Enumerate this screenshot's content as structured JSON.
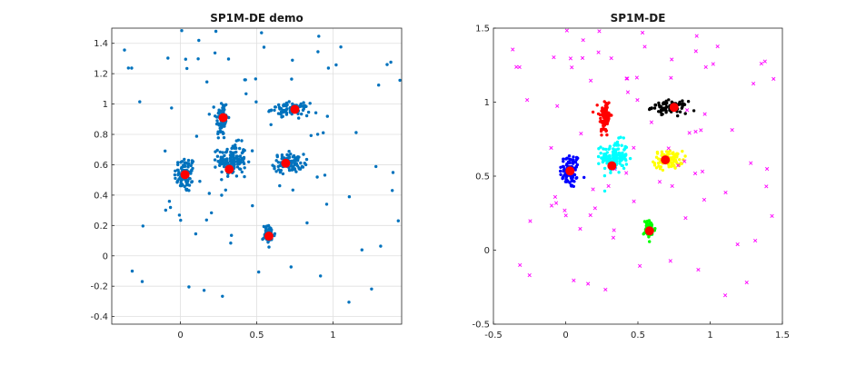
{
  "chart_data": [
    {
      "type": "scatter",
      "title": "SP1M-DE demo",
      "xlim": [
        -0.45,
        1.45
      ],
      "ylim": [
        -0.45,
        1.5
      ],
      "xticks": [
        0,
        0.5,
        1
      ],
      "xtick_labels": [
        "0",
        "0.5",
        "1"
      ],
      "yticks": [
        -0.4,
        -0.2,
        0,
        0.2,
        0.4,
        0.6,
        0.8,
        1,
        1.2,
        1.4
      ],
      "ytick_labels": [
        "-0.4",
        "-0.2",
        "0",
        "0.2",
        "0.4",
        "0.6",
        "0.8",
        "1",
        "1.2",
        "1.4"
      ],
      "grid": true,
      "point_color": "#0072bd",
      "center_color": "#ff0000",
      "clusters": [
        {
          "center": [
            0.03,
            0.535
          ],
          "spread": [
            0.035,
            0.06
          ],
          "count": 85
        },
        {
          "center": [
            0.27,
            0.9
          ],
          "spread": [
            0.02,
            0.07
          ],
          "count": 75
        },
        {
          "center": [
            0.34,
            0.63
          ],
          "spread": [
            0.045,
            0.055
          ],
          "count": 130
        },
        {
          "center": [
            0.71,
            0.61
          ],
          "spread": [
            0.05,
            0.03
          ],
          "count": 90
        },
        {
          "center": [
            0.72,
            0.965
          ],
          "spread": [
            0.06,
            0.02
          ],
          "count": 85
        },
        {
          "center": [
            0.58,
            0.14
          ],
          "spread": [
            0.02,
            0.03
          ],
          "count": 60
        }
      ],
      "outlier_count": 85,
      "centers": [
        {
          "x": 0.03,
          "y": 0.535
        },
        {
          "x": 0.28,
          "y": 0.91
        },
        {
          "x": 0.32,
          "y": 0.57
        },
        {
          "x": 0.69,
          "y": 0.61
        },
        {
          "x": 0.75,
          "y": 0.965
        },
        {
          "x": 0.58,
          "y": 0.13
        }
      ]
    },
    {
      "type": "scatter",
      "title": "SP1M-DE",
      "xlim": [
        -0.5,
        1.5
      ],
      "ylim": [
        -0.5,
        1.5
      ],
      "xticks": [
        -0.5,
        0,
        0.5,
        1,
        1.5
      ],
      "xtick_labels": [
        "-0.5",
        "0",
        "0.5",
        "1",
        "1.5"
      ],
      "yticks": [
        -0.5,
        0,
        0.5,
        1,
        1.5
      ],
      "ytick_labels": [
        "-0.5",
        "0",
        "0.5",
        "1",
        "1.5"
      ],
      "grid": false,
      "outlier_color": "#ff00ff",
      "outlier_marker": "x",
      "center_color": "#ff0000",
      "clusters": [
        {
          "color": "#0000ff",
          "center": [
            0.03,
            0.535
          ],
          "spread": [
            0.035,
            0.06
          ],
          "count": 85
        },
        {
          "color": "#ff0000",
          "center": [
            0.27,
            0.9
          ],
          "spread": [
            0.02,
            0.07
          ],
          "count": 75
        },
        {
          "color": "#00ffff",
          "center": [
            0.34,
            0.63
          ],
          "spread": [
            0.045,
            0.055
          ],
          "count": 130
        },
        {
          "color": "#ffff00",
          "center": [
            0.71,
            0.61
          ],
          "spread": [
            0.05,
            0.03
          ],
          "count": 90
        },
        {
          "color": "#000000",
          "center": [
            0.72,
            0.965
          ],
          "spread": [
            0.06,
            0.02
          ],
          "count": 85
        },
        {
          "color": "#00ff00",
          "center": [
            0.58,
            0.14
          ],
          "spread": [
            0.02,
            0.03
          ],
          "count": 60
        }
      ],
      "outlier_count": 85,
      "centers": [
        {
          "x": 0.03,
          "y": 0.535
        },
        {
          "x": 0.28,
          "y": 0.91
        },
        {
          "x": 0.32,
          "y": 0.57
        },
        {
          "x": 0.69,
          "y": 0.61
        },
        {
          "x": 0.75,
          "y": 0.965
        },
        {
          "x": 0.58,
          "y": 0.13
        }
      ]
    }
  ]
}
